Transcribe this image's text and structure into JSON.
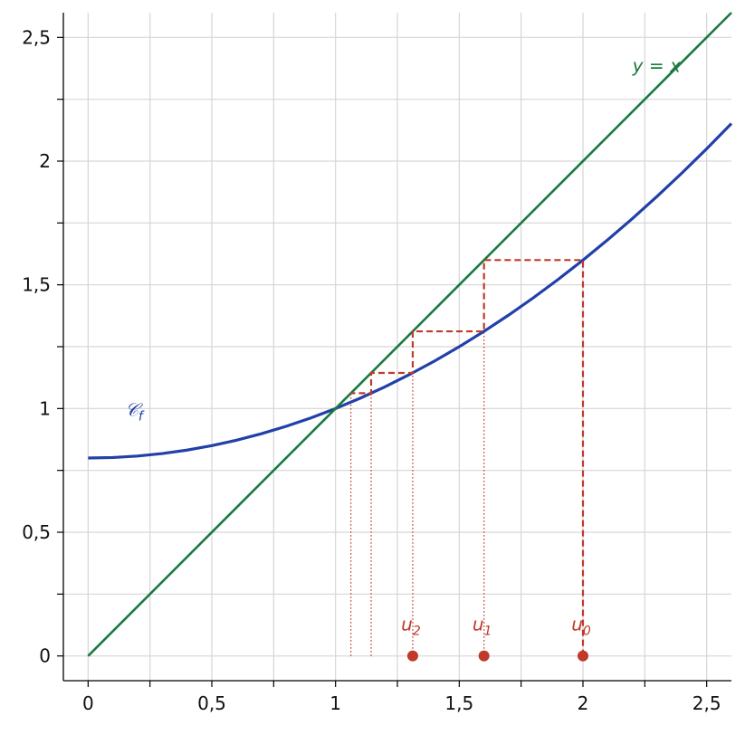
{
  "chart_data": {
    "type": "line",
    "xlim": [
      -0.1,
      2.6
    ],
    "ylim": [
      -0.1,
      2.6
    ],
    "xticks": [
      0,
      {
        "value": 0.5,
        "label": "0,5"
      },
      1,
      {
        "value": 1.5,
        "label": "1,5"
      },
      2,
      {
        "value": 2.5,
        "label": "2,5"
      }
    ],
    "yticks": [
      0,
      {
        "value": 0.5,
        "label": "0,5"
      },
      1,
      {
        "value": 1.5,
        "label": "1,5"
      },
      2,
      {
        "value": 2.5,
        "label": "2,5"
      }
    ],
    "xminorticks": [
      0.25,
      0.75,
      1.25,
      1.75,
      2.25
    ],
    "yminorticks": [
      0.25,
      0.75,
      1.25,
      1.75,
      2.25
    ],
    "grid": true,
    "series": [
      {
        "color": "#2140a8",
        "label": {
          "main": "𝒞",
          "sub": "f"
        },
        "x": [
          0,
          0.1,
          0.2,
          0.3,
          0.4,
          0.5,
          0.6,
          0.7,
          0.8,
          0.9,
          1,
          1.1,
          1.2,
          1.3,
          1.4,
          1.5,
          1.6,
          1.7,
          1.8,
          1.9,
          2,
          2.1,
          2.2,
          2.3,
          2.4,
          2.5,
          2.6
        ],
        "values": [
          0.8,
          0.802,
          0.808,
          0.818,
          0.832,
          0.85,
          0.872,
          0.898,
          0.928,
          0.962,
          1.0,
          1.042,
          1.088,
          1.138,
          1.192,
          1.25,
          1.312,
          1.378,
          1.448,
          1.522,
          1.6,
          1.682,
          1.768,
          1.858,
          1.952,
          2.05,
          2.152
        ]
      },
      {
        "color": "#1a7a3e",
        "label": {
          "main": "y = x"
        },
        "x": [
          0,
          2.6
        ],
        "values": [
          0,
          2.6
        ]
      }
    ],
    "cobweb": {
      "color": "#c0392b",
      "x": [
        2,
        2,
        1.6,
        1.6,
        1.312,
        1.312,
        1.144,
        1.144,
        1.062,
        1.062
      ],
      "values": [
        0,
        1.6,
        1.6,
        1.312,
        1.312,
        1.144,
        1.144,
        1.062,
        1.062,
        1.062
      ]
    },
    "guides": [
      {
        "x": [
          1.6,
          1.6
        ],
        "values": [
          0,
          1.312
        ]
      },
      {
        "x": [
          1.312,
          1.312
        ],
        "values": [
          0,
          1.144
        ]
      },
      {
        "x": [
          1.144,
          1.144
        ],
        "values": [
          0,
          1.062
        ]
      },
      {
        "x": [
          1.062,
          1.062
        ],
        "values": [
          0,
          1.062
        ]
      }
    ],
    "points": {
      "color": "#c0392b",
      "x": [
        2,
        1.6,
        1.312
      ],
      "values": [
        0,
        0,
        0
      ],
      "labels": [
        {
          "main": "u",
          "sub": "0"
        },
        {
          "main": "u",
          "sub": "1"
        },
        {
          "main": "u",
          "sub": "2"
        }
      ]
    }
  }
}
